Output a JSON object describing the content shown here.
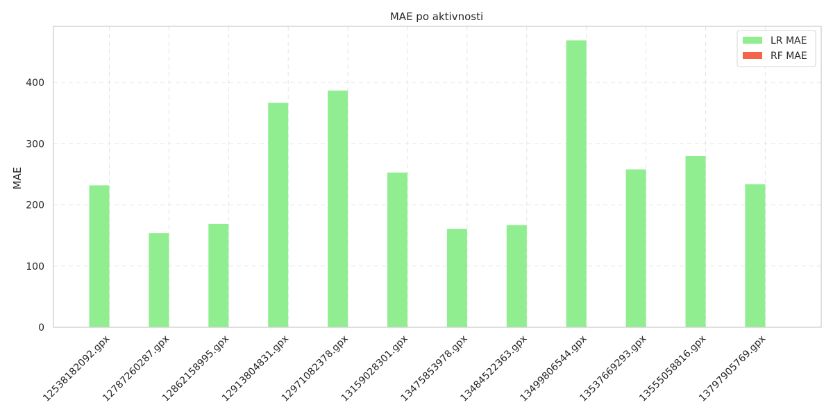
{
  "chart_data": {
    "type": "bar",
    "title": "MAE po aktivnosti",
    "xlabel": "",
    "ylabel": "MAE",
    "categories": [
      "12538182092.gpx",
      "12787260287.gpx",
      "12862158995.gpx",
      "12913804831.gpx",
      "12971082378.gpx",
      "13159028301.gpx",
      "13475853978.gpx",
      "13484522363.gpx",
      "13499806544.gpx",
      "13537669293.gpx",
      "13555058816.gpx",
      "13797905769.gpx"
    ],
    "series": [
      {
        "name": "LR MAE",
        "color": "#90ee90",
        "values": [
          232,
          154,
          169,
          367,
          387,
          253,
          161,
          167,
          469,
          258,
          280,
          234
        ]
      },
      {
        "name": "RF MAE",
        "color": "#f4644a",
        "values": [
          0,
          0,
          0,
          0,
          0,
          0,
          0,
          0,
          0,
          0,
          0,
          0
        ]
      }
    ],
    "ylim": [
      0,
      492
    ],
    "yticks": [
      0,
      100,
      200,
      300,
      400
    ],
    "grid": true,
    "legend_position": "top-right"
  }
}
